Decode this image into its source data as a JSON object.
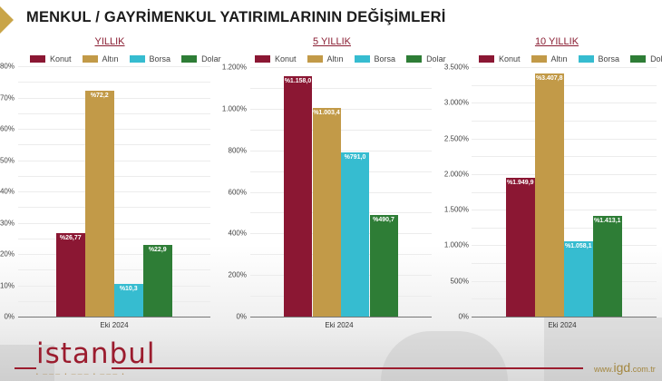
{
  "page": {
    "title": "MENKUL / GAYRİMENKUL YATIRIMLARININ DEĞİŞİMLERİ",
    "logo_text": "istanbul",
    "logo_subtitle": "• ——— • ——— • ——— •",
    "website_prefix": "www.",
    "website_main": "igd",
    "website_suffix": ".com.tr"
  },
  "colors": {
    "Konut": "#8b1733",
    "Altın": "#c29a48",
    "Borsa": "#36bcd0",
    "Dolar": "#2e7d36",
    "accent": "#c9a548",
    "title_link": "#8a1e33"
  },
  "legend": [
    "Konut",
    "Altın",
    "Borsa",
    "Dolar"
  ],
  "chart_data": [
    {
      "type": "bar",
      "title": "YILLIK",
      "categories": [
        "Eki 2024"
      ],
      "series": [
        {
          "name": "Konut",
          "values": [
            26.77
          ],
          "label": "%26,77"
        },
        {
          "name": "Altın",
          "values": [
            72.2
          ],
          "label": "%72,2"
        },
        {
          "name": "Borsa",
          "values": [
            10.3
          ],
          "label": "%10,3"
        },
        {
          "name": "Dolar",
          "values": [
            22.9
          ],
          "label": "%22,9"
        }
      ],
      "xlabel": "",
      "ylabel": "",
      "ylim": [
        0,
        80
      ],
      "yticks": [
        "0%",
        "10%",
        "20%",
        "30%",
        "40%",
        "50%",
        "60%",
        "70%",
        "80%"
      ],
      "grid": true,
      "legend_position": "top"
    },
    {
      "type": "bar",
      "title": "5 YILLIK",
      "categories": [
        "Eki 2024"
      ],
      "series": [
        {
          "name": "Konut",
          "values": [
            1158.0
          ],
          "label": "%1.158,0"
        },
        {
          "name": "Altın",
          "values": [
            1003.4
          ],
          "label": "%1.003,4"
        },
        {
          "name": "Borsa",
          "values": [
            791.0
          ],
          "label": "%791,0"
        },
        {
          "name": "Dolar",
          "values": [
            490.7
          ],
          "label": "%490,7"
        }
      ],
      "xlabel": "",
      "ylabel": "",
      "ylim": [
        0,
        1200
      ],
      "yticks": [
        "0%",
        "200%",
        "400%",
        "600%",
        "800%",
        "1.000%",
        "1.200%"
      ],
      "grid": true,
      "legend_position": "top"
    },
    {
      "type": "bar",
      "title": "10 YILLIK",
      "categories": [
        "Eki 2024"
      ],
      "series": [
        {
          "name": "Konut",
          "values": [
            1949.9
          ],
          "label": "%1.949,9"
        },
        {
          "name": "Altın",
          "values": [
            3407.8
          ],
          "label": "%3.407,8"
        },
        {
          "name": "Borsa",
          "values": [
            1058.1
          ],
          "label": "%1.058,1"
        },
        {
          "name": "Dolar",
          "values": [
            1413.1
          ],
          "label": "%1.413,1"
        }
      ],
      "xlabel": "",
      "ylabel": "",
      "ylim": [
        0,
        3500
      ],
      "yticks": [
        "0%",
        "500%",
        "1.000%",
        "1.500%",
        "2.000%",
        "2.500%",
        "3.000%",
        "3.500%"
      ],
      "grid": true,
      "legend_position": "top"
    }
  ]
}
